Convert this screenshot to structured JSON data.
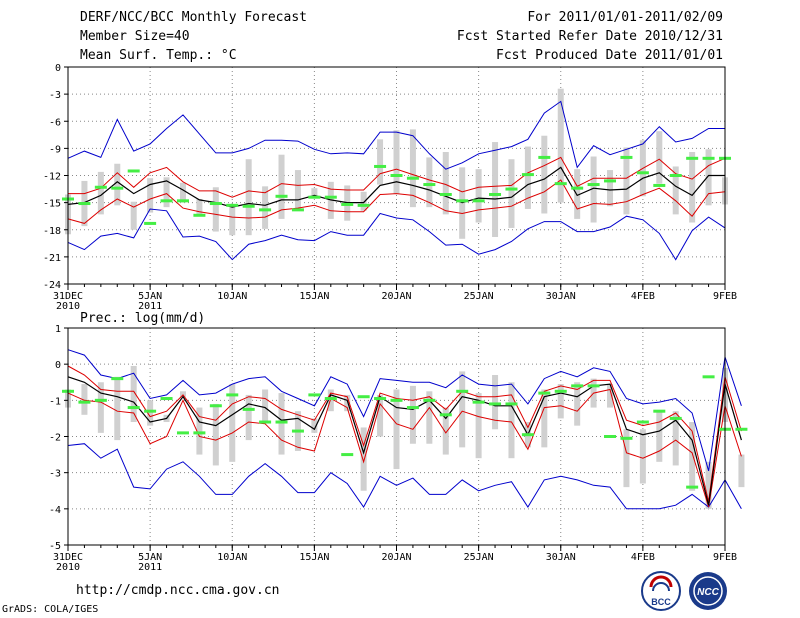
{
  "header": {
    "title": "DERF/NCC/BCC Monthly Forecast",
    "member_size": "Member Size=40",
    "period": "For 2011/01/01-2011/02/09",
    "fcst_refer": "Fcst Started Refer Date 2010/12/31",
    "fcst_produced": "Fcst Produced Date 2011/01/01"
  },
  "footer": {
    "url": "http://cmdp.ncc.cma.gov.cn",
    "grads": "GrADS: COLA/IGES",
    "logo1_text": "BCC",
    "logo2_text": "NCC"
  },
  "colors": {
    "grid": "#888888",
    "box": "#d0d0d0",
    "obs": "#44ee44",
    "mean": "#000000",
    "spread": "#dd0000",
    "range": "#0000cc"
  },
  "chart_data": [
    {
      "type": "line",
      "title": "Mean Surf. Temp.: °C",
      "ylim": [
        -24,
        0
      ],
      "yticks": [
        0,
        -3,
        -6,
        -9,
        -12,
        -15,
        -18,
        -21,
        -24
      ],
      "x_count": 40,
      "xticks": [
        {
          "i": 0,
          "label": "31DEC",
          "sub": "2010"
        },
        {
          "i": 5,
          "label": "5JAN",
          "sub": "2011"
        },
        {
          "i": 10,
          "label": "10JAN",
          "sub": ""
        },
        {
          "i": 15,
          "label": "15JAN",
          "sub": ""
        },
        {
          "i": 20,
          "label": "20JAN",
          "sub": ""
        },
        {
          "i": 25,
          "label": "25JAN",
          "sub": ""
        },
        {
          "i": 30,
          "label": "30JAN",
          "sub": ""
        },
        {
          "i": 35,
          "label": "4FEB",
          "sub": ""
        },
        {
          "i": 40,
          "label": "9FEB",
          "sub": ""
        }
      ],
      "series": [
        {
          "name": "ensemble mean",
          "values": [
            -15.2,
            -15.0,
            -14.2,
            -12.7,
            -14.0,
            -13.0,
            -12.6,
            -13.6,
            -14.7,
            -15.0,
            -15.5,
            -15.1,
            -15.3,
            -14.7,
            -14.7,
            -14.2,
            -14.7,
            -15.0,
            -15.0,
            -13.1,
            -12.7,
            -13.1,
            -13.6,
            -14.3,
            -15.0,
            -14.5,
            -14.6,
            -14.4,
            -13.0,
            -12.4,
            -11.1,
            -14.2,
            -13.4,
            -13.6,
            -13.5,
            -12.3,
            -11.7,
            -13.2,
            -14.2,
            -12.0,
            -12.0
          ]
        },
        {
          "name": "upper spread",
          "values": [
            -14.0,
            -14.0,
            -13.4,
            -11.7,
            -13.3,
            -11.7,
            -11.1,
            -12.7,
            -13.7,
            -13.7,
            -14.4,
            -13.7,
            -13.9,
            -12.9,
            -13.1,
            -13.0,
            -13.5,
            -13.6,
            -13.6,
            -11.8,
            -11.3,
            -11.9,
            -12.5,
            -13.0,
            -13.8,
            -13.3,
            -13.2,
            -13.1,
            -11.7,
            -10.9,
            -10.0,
            -13.2,
            -12.3,
            -12.3,
            -12.3,
            -11.2,
            -10.2,
            -11.8,
            -12.4,
            -10.9,
            -10.1
          ]
        },
        {
          "name": "lower spread",
          "values": [
            -16.8,
            -17.3,
            -15.8,
            -14.6,
            -15.5,
            -14.6,
            -14.0,
            -15.6,
            -16.0,
            -16.3,
            -16.6,
            -16.7,
            -16.6,
            -15.8,
            -15.6,
            -15.3,
            -15.9,
            -16.0,
            -16.0,
            -14.1,
            -14.0,
            -14.2,
            -15.0,
            -15.9,
            -16.2,
            -15.8,
            -15.6,
            -15.4,
            -14.5,
            -13.8,
            -12.5,
            -15.7,
            -15.1,
            -15.2,
            -14.9,
            -14.1,
            -13.4,
            -14.8,
            -16.5,
            -14.0,
            -13.8
          ]
        },
        {
          "name": "max",
          "values": [
            -10.1,
            -9.3,
            -10.0,
            -5.8,
            -9.3,
            -8.5,
            -6.8,
            -5.3,
            -7.4,
            -9.5,
            -9.5,
            -9.0,
            -8.1,
            -8.1,
            -8.2,
            -9.1,
            -9.6,
            -9.5,
            -9.6,
            -7.2,
            -7.2,
            -7.6,
            -9.6,
            -11.3,
            -10.6,
            -9.6,
            -9.2,
            -8.8,
            -8.0,
            -5.1,
            -3.8,
            -11.1,
            -8.7,
            -9.7,
            -9.1,
            -8.5,
            -6.6,
            -8.3,
            -7.9,
            -6.8,
            -6.8
          ]
        },
        {
          "name": "min",
          "values": [
            -19.4,
            -20.2,
            -18.7,
            -18.4,
            -18.9,
            -15.7,
            -15.9,
            -18.8,
            -18.7,
            -19.3,
            -21.3,
            -19.6,
            -19.2,
            -18.6,
            -19.1,
            -19.2,
            -18.2,
            -18.6,
            -18.6,
            -16.2,
            -16.7,
            -16.9,
            -18.2,
            -19.7,
            -19.6,
            -20.7,
            -20.2,
            -19.3,
            -17.9,
            -17.1,
            -17.1,
            -18.2,
            -18.2,
            -17.7,
            -16.5,
            -16.9,
            -18.4,
            -21.3,
            -18.1,
            -16.6,
            -17.8
          ]
        },
        {
          "name": "box low",
          "values": [
            -18.5,
            -17.6,
            -16.3,
            -15.3,
            -18.0,
            -16.1,
            -15.5,
            -15.0,
            -16.4,
            -18.2,
            -18.6,
            -18.6,
            -17.9,
            -16.8,
            -15.8,
            -14.2,
            -16.8,
            -17.0,
            -15.9,
            -13.0,
            -14.0,
            -15.5,
            -15.5,
            -16.3,
            -19.0,
            -17.2,
            -18.8,
            -17.8,
            -15.7,
            -16.2,
            -15.0,
            -16.8,
            -17.2,
            -15.4,
            -16.3,
            -14.3,
            -12.9,
            -16.3,
            -17.2,
            -15.3,
            -15.2
          ]
        },
        {
          "name": "box high",
          "values": [
            -14.1,
            -12.6,
            -11.6,
            -10.7,
            -14.9,
            -12.3,
            -12.2,
            -12.8,
            -14.6,
            -13.3,
            -15.3,
            -10.2,
            -13.2,
            -9.7,
            -11.4,
            -13.4,
            -12.7,
            -13.1,
            -13.8,
            -8.0,
            -7.0,
            -6.9,
            -10.0,
            -9.4,
            -11.1,
            -11.3,
            -8.3,
            -10.2,
            -8.8,
            -7.6,
            -2.4,
            -11.3,
            -9.9,
            -11.4,
            -8.9,
            -8.1,
            -7.1,
            -11.0,
            -9.4,
            -9.1,
            -12.2
          ]
        },
        {
          "name": "observed",
          "values": [
            -14.6,
            -15.1,
            -13.3,
            -13.4,
            -11.5,
            -17.3,
            -14.8,
            -14.8,
            -16.4,
            -15.1,
            -15.3,
            -15.4,
            -15.8,
            -14.3,
            -15.8,
            -14.4,
            -14.4,
            -15.2,
            -15.3,
            -11.0,
            -12.0,
            -12.3,
            -13.0,
            -14.1,
            -14.8,
            -14.8,
            -14.1,
            -13.5,
            -11.9,
            -10.0,
            -12.9,
            -13.4,
            -13.0,
            -12.6,
            -10.0,
            -11.7,
            -13.1,
            -12.0,
            -10.1,
            -10.1,
            -10.1
          ]
        }
      ]
    },
    {
      "type": "line",
      "title": "Prec.: log(mm/d)",
      "ylim": [
        -5,
        1
      ],
      "yticks": [
        1,
        0,
        -1,
        -2,
        -3,
        -4,
        -5
      ],
      "x_count": 40,
      "xticks": [
        {
          "i": 0,
          "label": "31DEC",
          "sub": "2010"
        },
        {
          "i": 5,
          "label": "5JAN",
          "sub": "2011"
        },
        {
          "i": 10,
          "label": "10JAN",
          "sub": ""
        },
        {
          "i": 15,
          "label": "15JAN",
          "sub": ""
        },
        {
          "i": 20,
          "label": "20JAN",
          "sub": ""
        },
        {
          "i": 25,
          "label": "25JAN",
          "sub": ""
        },
        {
          "i": 30,
          "label": "30JAN",
          "sub": ""
        },
        {
          "i": 35,
          "label": "4FEB",
          "sub": ""
        },
        {
          "i": 40,
          "label": "9FEB",
          "sub": ""
        }
      ],
      "series": [
        {
          "name": "ensemble mean",
          "values": [
            -0.35,
            -0.5,
            -0.8,
            -0.9,
            -1.05,
            -1.6,
            -1.5,
            -0.9,
            -1.6,
            -1.7,
            -1.4,
            -1.1,
            -1.2,
            -1.55,
            -1.5,
            -1.8,
            -0.85,
            -1.0,
            -2.45,
            -0.9,
            -1.2,
            -1.25,
            -1.0,
            -1.5,
            -0.9,
            -1.0,
            -1.15,
            -1.15,
            -1.95,
            -0.9,
            -0.8,
            -0.9,
            -0.6,
            -0.55,
            -1.8,
            -1.95,
            -1.85,
            -1.55,
            -2.1,
            -3.9,
            -0.55,
            -2.1
          ]
        },
        {
          "name": "upper spread",
          "values": [
            -0.05,
            -0.3,
            -0.7,
            -0.75,
            -0.75,
            -1.45,
            -1.3,
            -0.85,
            -1.45,
            -1.55,
            -1.1,
            -0.9,
            -0.95,
            -1.25,
            -1.4,
            -1.55,
            -0.8,
            -0.9,
            -2.25,
            -0.8,
            -0.95,
            -1.0,
            -0.9,
            -1.25,
            -0.75,
            -0.9,
            -0.9,
            -0.85,
            -1.75,
            -0.75,
            -0.6,
            -0.7,
            -0.45,
            -0.45,
            -1.55,
            -1.7,
            -1.6,
            -1.35,
            -1.85,
            -3.8,
            -0.35,
            -1.85
          ]
        },
        {
          "name": "lower spread",
          "values": [
            -0.8,
            -1.0,
            -1.05,
            -1.3,
            -1.35,
            -2.2,
            -2.0,
            -1.0,
            -2.0,
            -2.1,
            -1.9,
            -1.6,
            -1.65,
            -2.1,
            -2.3,
            -2.4,
            -0.95,
            -1.2,
            -2.7,
            -1.1,
            -1.65,
            -1.8,
            -1.2,
            -1.9,
            -1.3,
            -1.45,
            -1.55,
            -1.6,
            -2.35,
            -1.2,
            -1.15,
            -1.3,
            -0.8,
            -0.7,
            -2.45,
            -2.6,
            -2.4,
            -2.1,
            -2.45,
            -3.95,
            -1.15,
            -2.55
          ]
        },
        {
          "name": "max",
          "values": [
            0.4,
            0.25,
            -0.3,
            -0.4,
            -0.25,
            -0.95,
            -0.85,
            -0.45,
            -0.85,
            -0.8,
            -0.55,
            -0.4,
            -0.35,
            -0.75,
            -0.95,
            -1.15,
            -0.35,
            -0.55,
            -1.45,
            -0.4,
            -0.45,
            -0.5,
            -0.5,
            -0.65,
            -0.3,
            -0.55,
            -0.6,
            -0.55,
            -1.1,
            -0.4,
            -0.2,
            -0.35,
            -0.1,
            -0.2,
            -0.95,
            -1.1,
            -1.05,
            -0.95,
            -1.35,
            -2.95,
            0.2,
            -1.15
          ]
        },
        {
          "name": "min",
          "values": [
            -2.25,
            -2.2,
            -2.6,
            -2.35,
            -3.4,
            -3.45,
            -2.9,
            -2.7,
            -3.1,
            -3.6,
            -3.6,
            -3.1,
            -2.75,
            -3.1,
            -3.55,
            -3.55,
            -3.0,
            -3.3,
            -3.95,
            -3.1,
            -3.35,
            -3.15,
            -3.6,
            -3.6,
            -3.2,
            -3.5,
            -3.35,
            -3.25,
            -3.95,
            -3.2,
            -3.1,
            -3.2,
            -3.35,
            -3.4,
            -4.0,
            -4.0,
            -4.0,
            -3.9,
            -3.6,
            -3.95,
            -3.2,
            -4.0
          ]
        },
        {
          "name": "box low",
          "values": [
            -1.2,
            -1.4,
            -1.9,
            -2.1,
            -1.6,
            -1.7,
            -1.6,
            -0.9,
            -2.5,
            -2.8,
            -2.7,
            -2.1,
            -1.6,
            -2.5,
            -2.4,
            -1.9,
            -1.3,
            -1.3,
            -3.5,
            -2.0,
            -2.9,
            -2.2,
            -2.2,
            -2.5,
            -2.3,
            -2.6,
            -1.8,
            -2.6,
            -2.3,
            -2.3,
            -1.5,
            -1.7,
            -1.2,
            -1.2,
            -3.4,
            -3.3,
            -2.7,
            -2.8,
            -3.5,
            -4.0,
            -1.6,
            -3.4
          ]
        },
        {
          "name": "box high",
          "values": [
            -0.7,
            -0.55,
            -0.5,
            -0.35,
            -0.05,
            -1.0,
            -1.4,
            -0.75,
            -1.2,
            -1.1,
            -0.55,
            -0.85,
            -0.7,
            -0.8,
            -1.3,
            -1.5,
            -0.7,
            -0.85,
            -1.75,
            -0.85,
            -0.7,
            -0.6,
            -0.75,
            -1.2,
            -0.2,
            -0.8,
            -0.3,
            -0.5,
            -1.6,
            -0.7,
            -0.55,
            -0.5,
            -0.4,
            -0.55,
            -1.8,
            -1.8,
            -1.3,
            -1.3,
            -1.6,
            -2.7,
            -0.1,
            -2.5
          ]
        },
        {
          "name": "observed",
          "values": [
            -0.75,
            -1.05,
            -1.0,
            -0.4,
            -1.2,
            -1.3,
            -0.95,
            -1.9,
            -1.9,
            -1.15,
            -0.85,
            -1.25,
            -1.6,
            -1.6,
            -1.85,
            -0.85,
            -0.95,
            -2.5,
            -0.9,
            -0.95,
            -1.0,
            -1.2,
            -1.0,
            -1.4,
            -0.75,
            -1.05,
            -1.1,
            -1.1,
            -1.95,
            -0.8,
            -0.75,
            -0.6,
            -0.6,
            -2.0,
            -2.05,
            -1.6,
            -1.3,
            -1.5,
            -3.4,
            -0.35,
            -1.8,
            -1.8
          ]
        }
      ]
    }
  ]
}
